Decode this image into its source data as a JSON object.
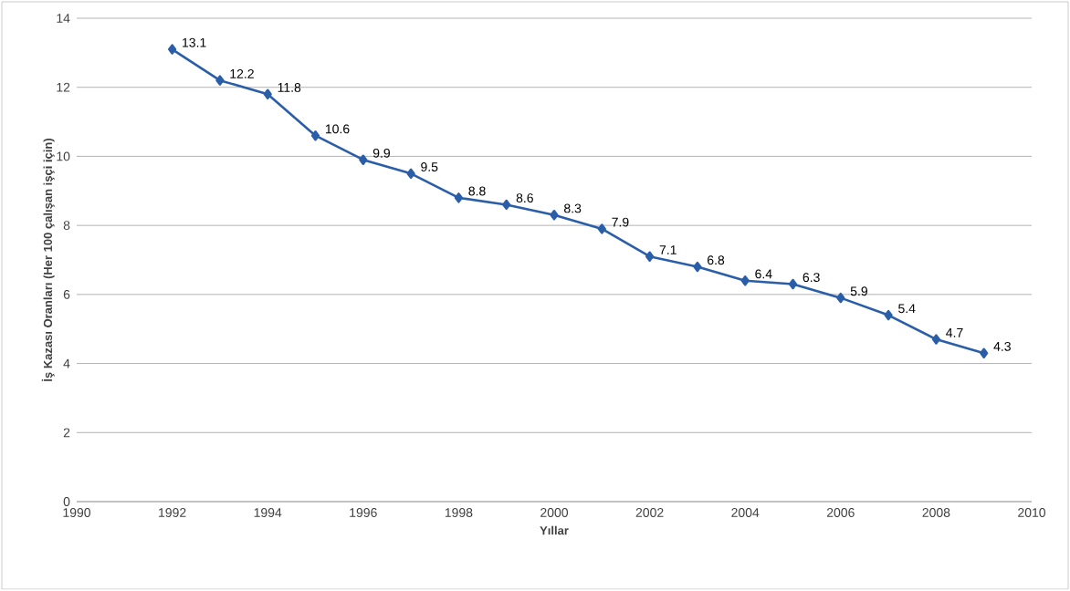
{
  "chart_data": {
    "type": "line",
    "xlabel": "Yıllar",
    "ylabel": "İş Kazası Oranları (Her 100 çalışan işçi için)",
    "x": [
      1992,
      1993,
      1994,
      1995,
      1996,
      1997,
      1998,
      1999,
      2000,
      2001,
      2002,
      2003,
      2004,
      2005,
      2006,
      2007,
      2008,
      2009
    ],
    "series": [
      {
        "color": "#2a5ea8",
        "values": [
          13.1,
          12.2,
          11.8,
          10.6,
          9.9,
          9.5,
          8.8,
          8.6,
          8.3,
          7.9,
          7.1,
          6.8,
          6.4,
          6.3,
          5.9,
          5.4,
          4.7,
          4.3
        ]
      }
    ],
    "xlim": [
      1990,
      2010
    ],
    "xticks": [
      1990,
      1992,
      1994,
      1996,
      1998,
      2000,
      2002,
      2004,
      2006,
      2008,
      2010
    ],
    "ylim": [
      0,
      14
    ],
    "yticks": [
      0,
      2,
      4,
      6,
      8,
      10,
      12,
      14
    ],
    "grid": "y",
    "marker": "diamond",
    "line_style": "solid",
    "data_labels": true
  }
}
